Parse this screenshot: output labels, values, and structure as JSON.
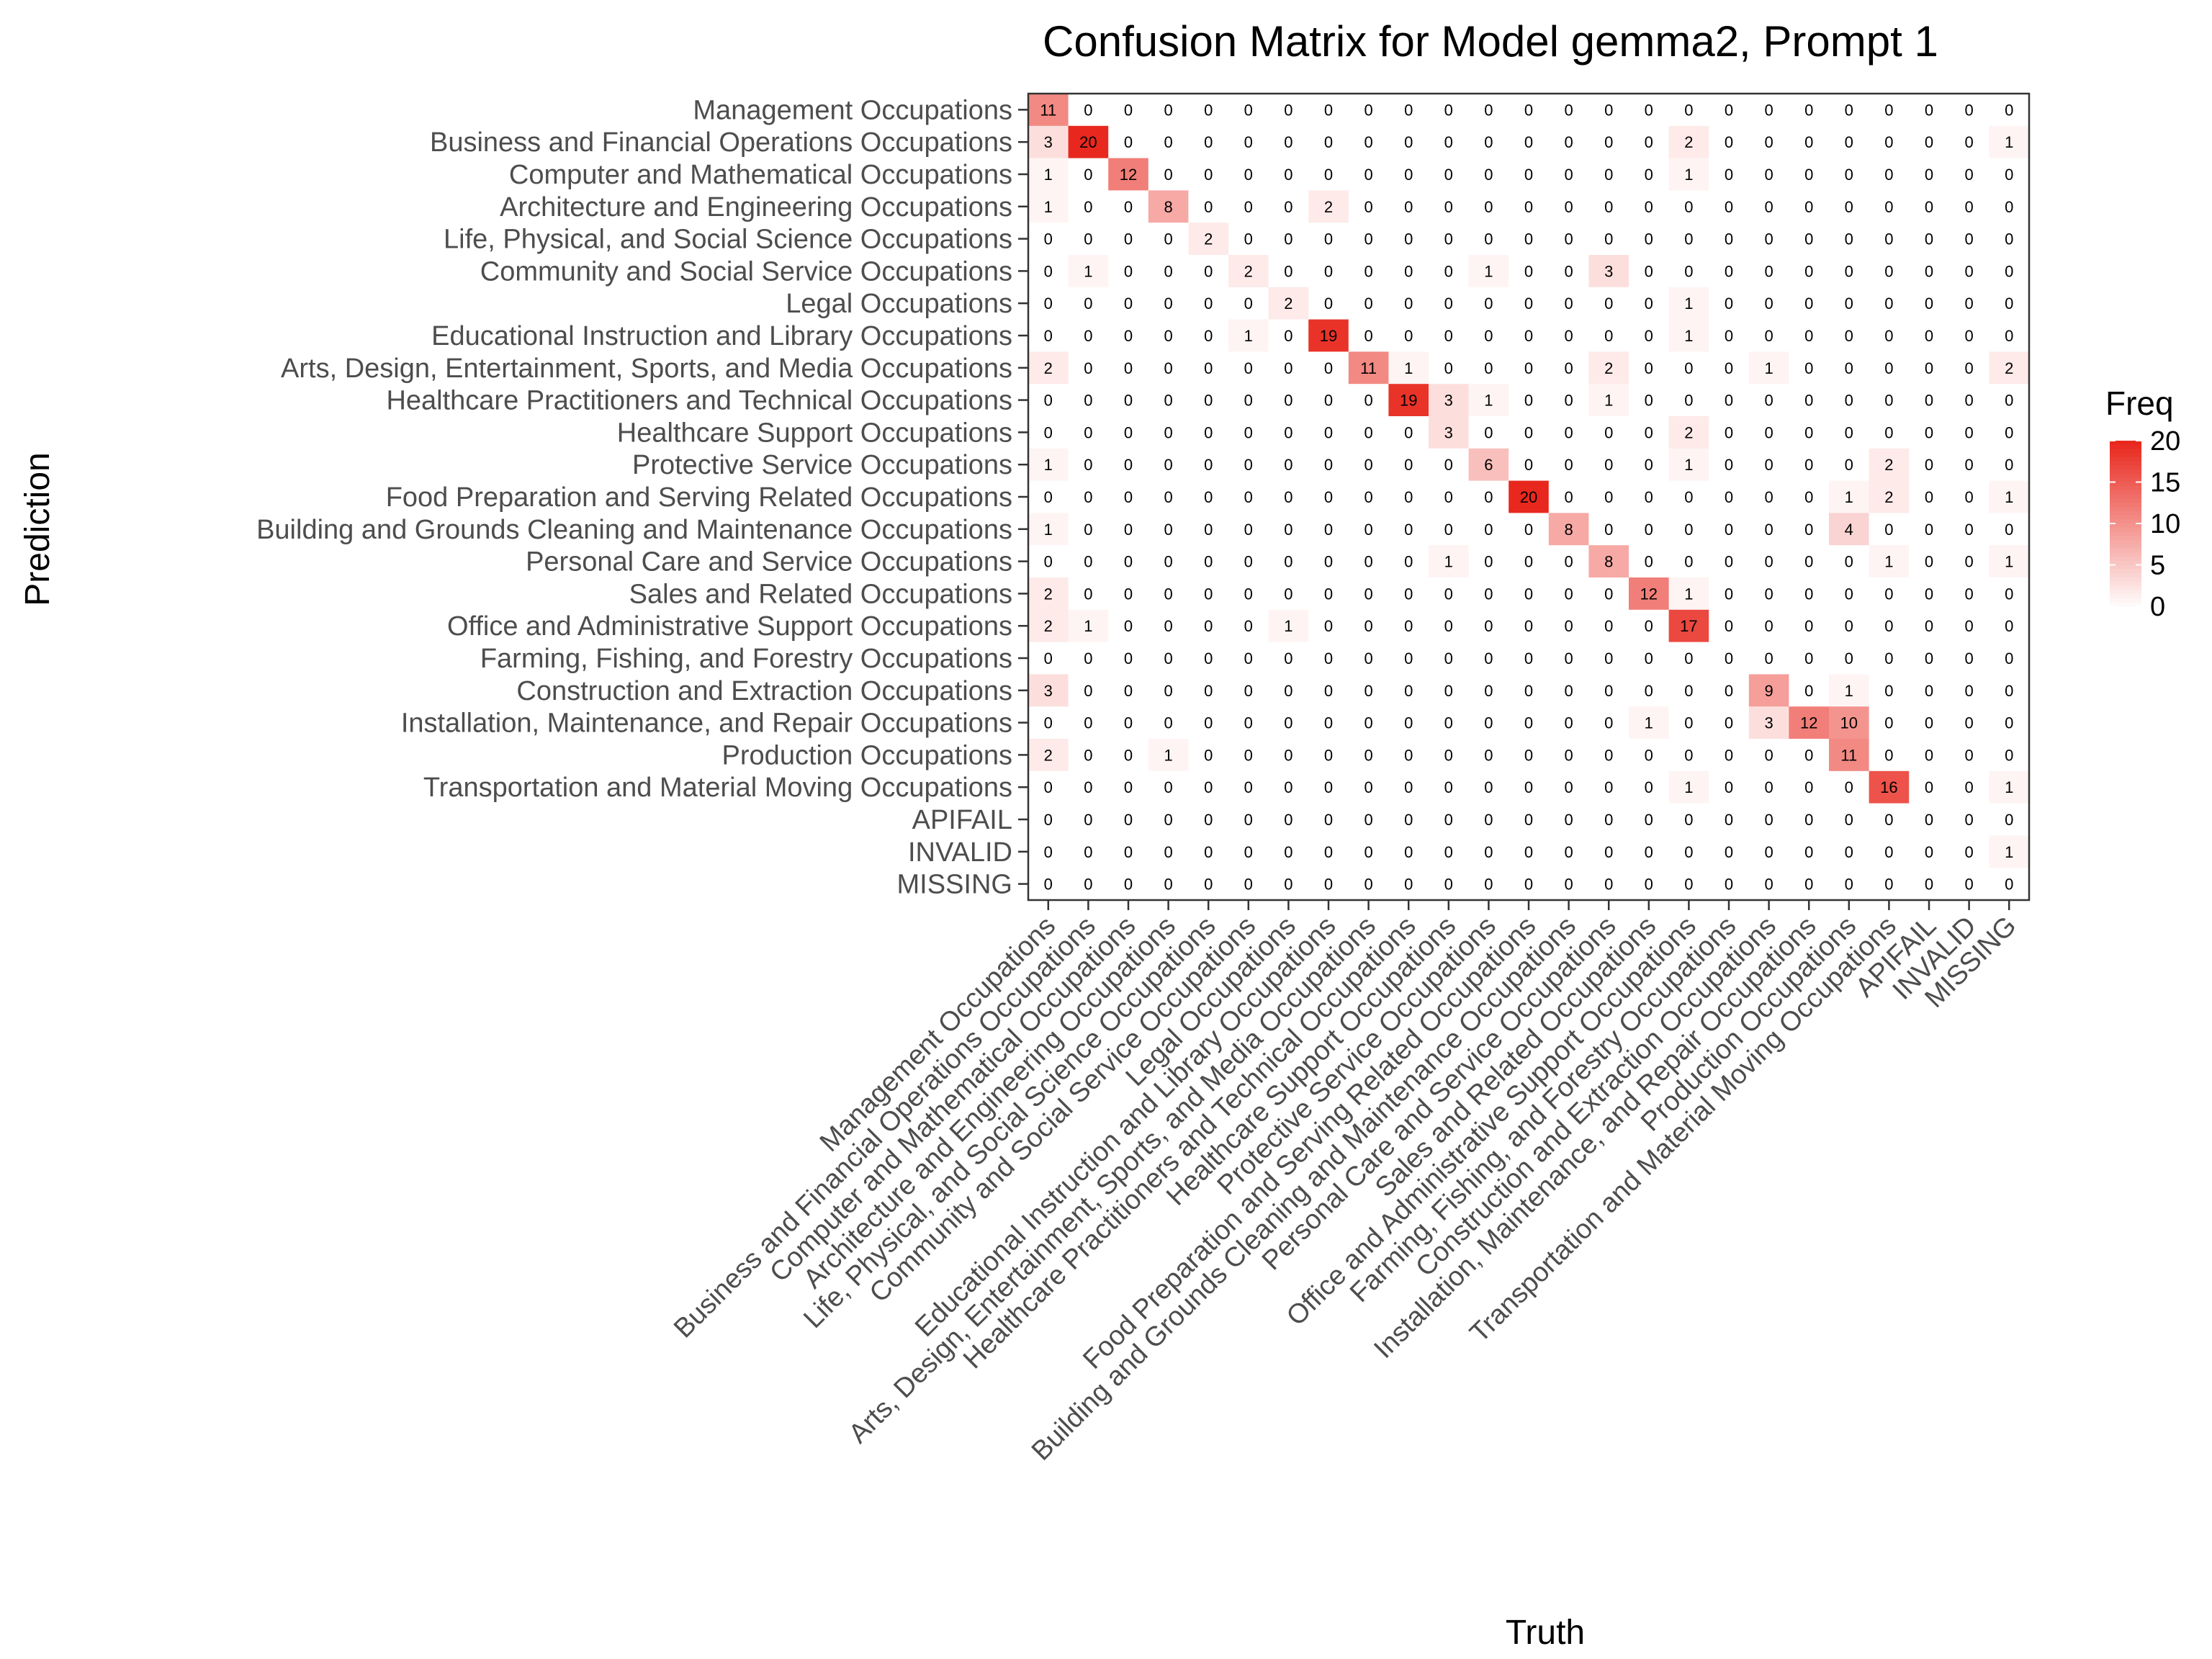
{
  "chart_data": {
    "type": "heatmap",
    "title": "Confusion Matrix for Model gemma2, Prompt 1",
    "xlabel": "Truth",
    "ylabel": "Prediction",
    "categories": [
      "Management Occupations",
      "Business and Financial Operations Occupations",
      "Computer and Mathematical Occupations",
      "Architecture and Engineering Occupations",
      "Life, Physical, and Social Science Occupations",
      "Community and Social Service Occupations",
      "Legal Occupations",
      "Educational Instruction and Library Occupations",
      "Arts, Design, Entertainment, Sports, and Media Occupations",
      "Healthcare Practitioners and Technical Occupations",
      "Healthcare Support Occupations",
      "Protective Service Occupations",
      "Food Preparation and Serving Related Occupations",
      "Building and Grounds Cleaning and Maintenance Occupations",
      "Personal Care and Service Occupations",
      "Sales and Related Occupations",
      "Office and Administrative Support Occupations",
      "Farming, Fishing, and Forestry Occupations",
      "Construction and Extraction Occupations",
      "Installation, Maintenance, and Repair Occupations",
      "Production Occupations",
      "Transportation and Material Moving Occupations",
      "APIFAIL",
      "INVALID",
      "MISSING"
    ],
    "matrix": [
      [
        11,
        0,
        0,
        0,
        0,
        0,
        0,
        0,
        0,
        0,
        0,
        0,
        0,
        0,
        0,
        0,
        0,
        0,
        0,
        0,
        0,
        0,
        0,
        0,
        0
      ],
      [
        3,
        20,
        0,
        0,
        0,
        0,
        0,
        0,
        0,
        0,
        0,
        0,
        0,
        0,
        0,
        0,
        2,
        0,
        0,
        0,
        0,
        0,
        0,
        0,
        1
      ],
      [
        1,
        0,
        12,
        0,
        0,
        0,
        0,
        0,
        0,
        0,
        0,
        0,
        0,
        0,
        0,
        0,
        1,
        0,
        0,
        0,
        0,
        0,
        0,
        0,
        0
      ],
      [
        1,
        0,
        0,
        8,
        0,
        0,
        0,
        2,
        0,
        0,
        0,
        0,
        0,
        0,
        0,
        0,
        0,
        0,
        0,
        0,
        0,
        0,
        0,
        0,
        0
      ],
      [
        0,
        0,
        0,
        0,
        2,
        0,
        0,
        0,
        0,
        0,
        0,
        0,
        0,
        0,
        0,
        0,
        0,
        0,
        0,
        0,
        0,
        0,
        0,
        0,
        0
      ],
      [
        0,
        1,
        0,
        0,
        0,
        2,
        0,
        0,
        0,
        0,
        0,
        1,
        0,
        0,
        3,
        0,
        0,
        0,
        0,
        0,
        0,
        0,
        0,
        0,
        0
      ],
      [
        0,
        0,
        0,
        0,
        0,
        0,
        2,
        0,
        0,
        0,
        0,
        0,
        0,
        0,
        0,
        0,
        1,
        0,
        0,
        0,
        0,
        0,
        0,
        0,
        0
      ],
      [
        0,
        0,
        0,
        0,
        0,
        1,
        0,
        19,
        0,
        0,
        0,
        0,
        0,
        0,
        0,
        0,
        1,
        0,
        0,
        0,
        0,
        0,
        0,
        0,
        0
      ],
      [
        2,
        0,
        0,
        0,
        0,
        0,
        0,
        0,
        11,
        1,
        0,
        0,
        0,
        0,
        2,
        0,
        0,
        0,
        1,
        0,
        0,
        0,
        0,
        0,
        2
      ],
      [
        0,
        0,
        0,
        0,
        0,
        0,
        0,
        0,
        0,
        19,
        3,
        1,
        0,
        0,
        1,
        0,
        0,
        0,
        0,
        0,
        0,
        0,
        0,
        0,
        0
      ],
      [
        0,
        0,
        0,
        0,
        0,
        0,
        0,
        0,
        0,
        0,
        3,
        0,
        0,
        0,
        0,
        0,
        2,
        0,
        0,
        0,
        0,
        0,
        0,
        0,
        0
      ],
      [
        1,
        0,
        0,
        0,
        0,
        0,
        0,
        0,
        0,
        0,
        0,
        6,
        0,
        0,
        0,
        0,
        1,
        0,
        0,
        0,
        0,
        2,
        0,
        0,
        0
      ],
      [
        0,
        0,
        0,
        0,
        0,
        0,
        0,
        0,
        0,
        0,
        0,
        0,
        20,
        0,
        0,
        0,
        0,
        0,
        0,
        0,
        1,
        2,
        0,
        0,
        1
      ],
      [
        1,
        0,
        0,
        0,
        0,
        0,
        0,
        0,
        0,
        0,
        0,
        0,
        0,
        8,
        0,
        0,
        0,
        0,
        0,
        0,
        4,
        0,
        0,
        0,
        0
      ],
      [
        0,
        0,
        0,
        0,
        0,
        0,
        0,
        0,
        0,
        0,
        1,
        0,
        0,
        0,
        8,
        0,
        0,
        0,
        0,
        0,
        0,
        1,
        0,
        0,
        1
      ],
      [
        2,
        0,
        0,
        0,
        0,
        0,
        0,
        0,
        0,
        0,
        0,
        0,
        0,
        0,
        0,
        12,
        1,
        0,
        0,
        0,
        0,
        0,
        0,
        0,
        0
      ],
      [
        2,
        1,
        0,
        0,
        0,
        0,
        1,
        0,
        0,
        0,
        0,
        0,
        0,
        0,
        0,
        0,
        17,
        0,
        0,
        0,
        0,
        0,
        0,
        0,
        0
      ],
      [
        0,
        0,
        0,
        0,
        0,
        0,
        0,
        0,
        0,
        0,
        0,
        0,
        0,
        0,
        0,
        0,
        0,
        0,
        0,
        0,
        0,
        0,
        0,
        0,
        0
      ],
      [
        3,
        0,
        0,
        0,
        0,
        0,
        0,
        0,
        0,
        0,
        0,
        0,
        0,
        0,
        0,
        0,
        0,
        0,
        9,
        0,
        1,
        0,
        0,
        0,
        0
      ],
      [
        0,
        0,
        0,
        0,
        0,
        0,
        0,
        0,
        0,
        0,
        0,
        0,
        0,
        0,
        0,
        1,
        0,
        0,
        3,
        12,
        10,
        0,
        0,
        0,
        0
      ],
      [
        2,
        0,
        0,
        1,
        0,
        0,
        0,
        0,
        0,
        0,
        0,
        0,
        0,
        0,
        0,
        0,
        0,
        0,
        0,
        0,
        11,
        0,
        0,
        0,
        0
      ],
      [
        0,
        0,
        0,
        0,
        0,
        0,
        0,
        0,
        0,
        0,
        0,
        0,
        0,
        0,
        0,
        0,
        1,
        0,
        0,
        0,
        0,
        16,
        0,
        0,
        1
      ],
      [
        0,
        0,
        0,
        0,
        0,
        0,
        0,
        0,
        0,
        0,
        0,
        0,
        0,
        0,
        0,
        0,
        0,
        0,
        0,
        0,
        0,
        0,
        0,
        0,
        0
      ],
      [
        0,
        0,
        0,
        0,
        0,
        0,
        0,
        0,
        0,
        0,
        0,
        0,
        0,
        0,
        0,
        0,
        0,
        0,
        0,
        0,
        0,
        0,
        0,
        0,
        1
      ],
      [
        0,
        0,
        0,
        0,
        0,
        0,
        0,
        0,
        0,
        0,
        0,
        0,
        0,
        0,
        0,
        0,
        0,
        0,
        0,
        0,
        0,
        0,
        0,
        0,
        0
      ]
    ],
    "legend": {
      "title": "Freq",
      "ticks": [
        0,
        5,
        10,
        15,
        20
      ],
      "range": [
        0,
        20
      ],
      "color_low": "#ffffff",
      "color_high": "#e8281e",
      "placement": "right"
    },
    "grid": false
  }
}
